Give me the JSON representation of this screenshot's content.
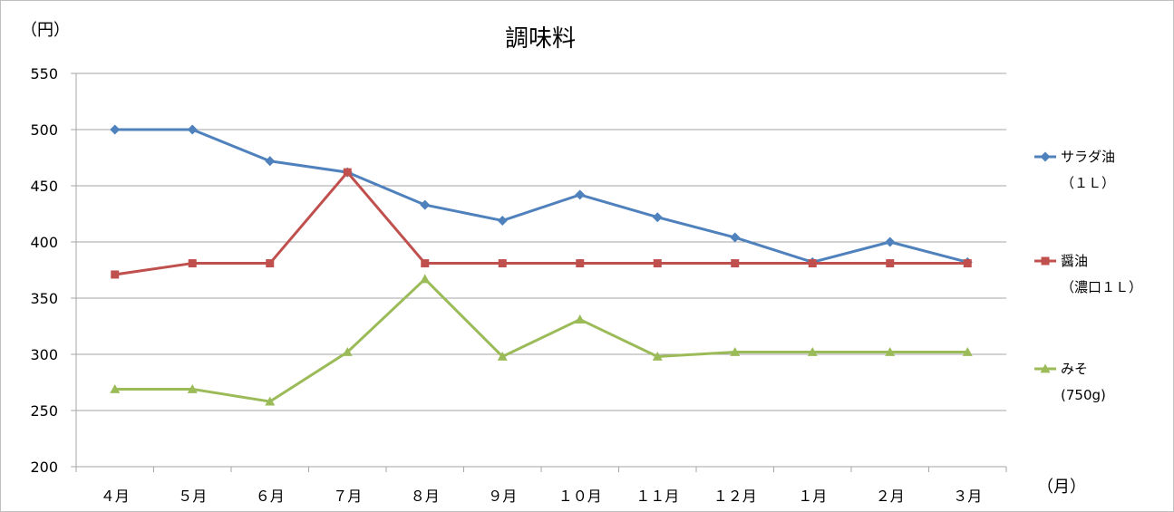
{
  "chart_data": {
    "type": "line",
    "title": "調味料",
    "ylabel": "（円）",
    "xlabel": "（月）",
    "categories": [
      "４月",
      "５月",
      "６月",
      "７月",
      "８月",
      "９月",
      "１０月",
      "１１月",
      "１２月",
      "１月",
      "２月",
      "３月"
    ],
    "ylim": [
      200,
      550
    ],
    "yticks": [
      550,
      500,
      450,
      400,
      350,
      300,
      250,
      200
    ],
    "grid": true,
    "legend_position": "right",
    "series": [
      {
        "name": "サラダ油",
        "name_sub": "（１Ｌ）",
        "color": "#4f81bd",
        "marker": "diamond",
        "values": [
          500,
          500,
          472,
          462,
          433,
          419,
          442,
          422,
          404,
          382,
          400,
          382
        ]
      },
      {
        "name": "醤油",
        "name_sub": "（濃口１Ｌ）",
        "color": "#c0504d",
        "marker": "square",
        "values": [
          371,
          381,
          381,
          462,
          381,
          381,
          381,
          381,
          381,
          381,
          381,
          381
        ]
      },
      {
        "name": "みそ",
        "name_sub": "(750g)",
        "color": "#9bbb59",
        "marker": "triangle",
        "values": [
          269,
          269,
          258,
          302,
          367,
          298,
          331,
          298,
          302,
          302,
          302,
          302
        ]
      }
    ]
  }
}
